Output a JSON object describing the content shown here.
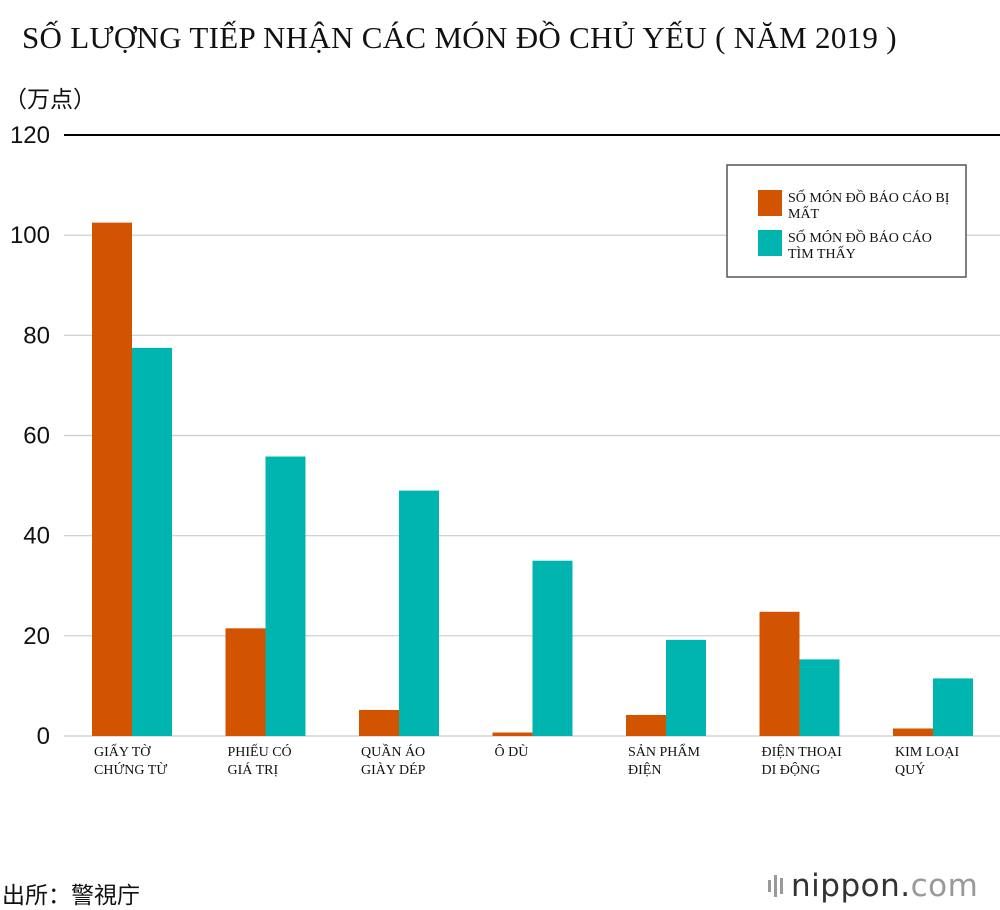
{
  "title": "SỐ LƯỢNG TIẾP NHẬN CÁC MÓN ĐỒ CHỦ YẾU ( NĂM 2019 )",
  "unit": "（万点）",
  "source": "出所：警視庁",
  "brand": {
    "name": "nippon",
    "dot": ".",
    "tld": "com"
  },
  "colors": {
    "lost": "#d35400",
    "found": "#00b5b0",
    "grid": "#cccccc",
    "axis": "#000000"
  },
  "chart_data": {
    "type": "bar",
    "ylim": [
      0,
      120
    ],
    "yticks": [
      "0",
      "20",
      "40",
      "60",
      "80",
      "100",
      "120"
    ],
    "categories": [
      [
        "GIẤY TỜ",
        "CHỨNG TỪ"
      ],
      [
        "PHIẾU CÓ",
        "GIÁ TRỊ"
      ],
      [
        "QUẦN ÁO",
        "GIÀY DÉP"
      ],
      [
        "Ô DÙ"
      ],
      [
        "SẢN PHẨM",
        "ĐIỆN"
      ],
      [
        "ĐIỆN THOẠI",
        "DI ĐỘNG"
      ],
      [
        "KIM LOẠI",
        "QUÝ"
      ]
    ],
    "series": [
      {
        "name": [
          "SỐ MÓN ĐỒ BÁO CÁO BỊ",
          "MẤT"
        ],
        "color": "#d35400",
        "values": [
          102.5,
          21.5,
          5.2,
          0.7,
          4.2,
          24.8,
          1.5
        ]
      },
      {
        "name": [
          "SỐ MÓN ĐỒ BÁO CÁO",
          "TÌM THẤY"
        ],
        "color": "#00b5b0",
        "values": [
          77.5,
          55.8,
          49.0,
          35.0,
          19.2,
          15.3,
          11.5
        ]
      }
    ],
    "legend": "top-right",
    "grid": true
  }
}
